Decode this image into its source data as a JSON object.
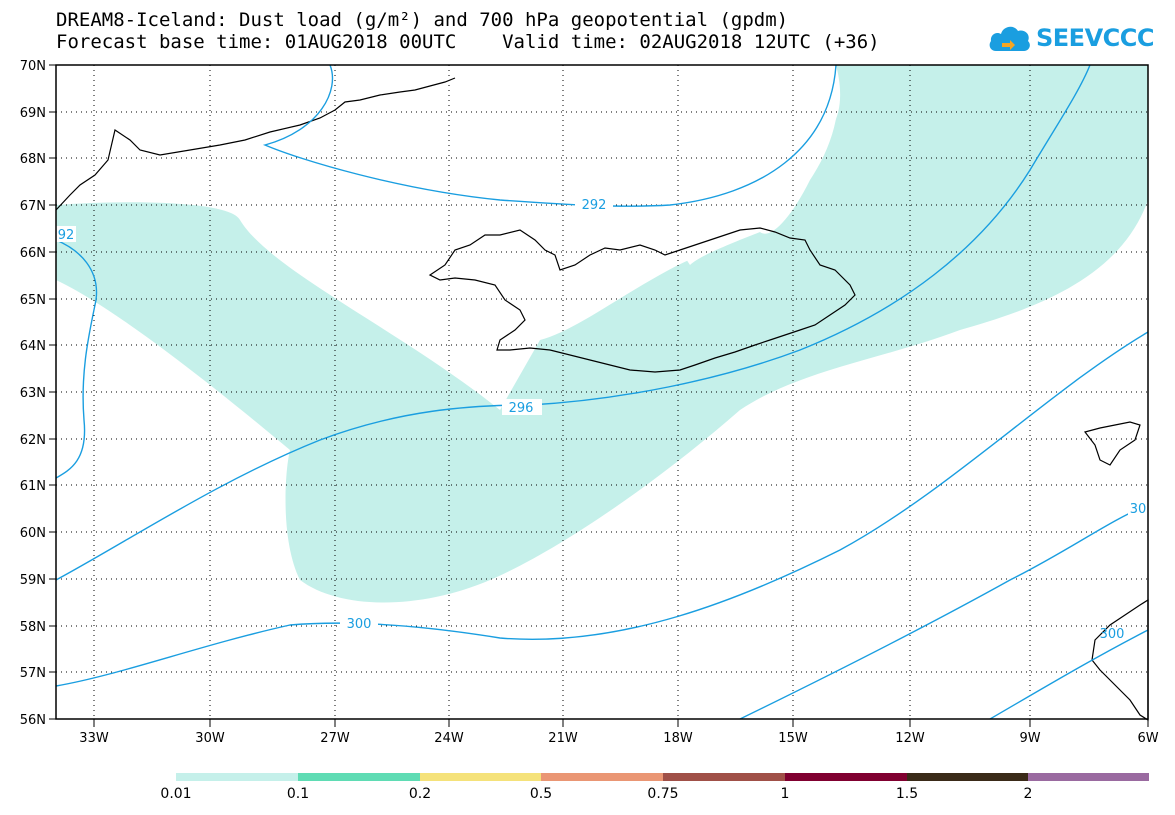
{
  "title_line1": "DREAM8-Iceland: Dust load (g/m²) and 700 hPa geopotential (gpdm)",
  "title_line2": "Forecast base time: 01AUG2018 00UTC    Valid time: 02AUG2018 12UTC (+36)",
  "logo": {
    "text": "SEEVCCC",
    "icon": "cloud-logo-icon",
    "color": "#1a9ee0"
  },
  "map": {
    "lat_labels": [
      "70N",
      "69N",
      "68N",
      "67N",
      "66N",
      "65N",
      "64N",
      "63N",
      "62N",
      "61N",
      "60N",
      "59N",
      "58N",
      "57N",
      "56N"
    ],
    "lon_labels": [
      "33W",
      "30W",
      "27W",
      "24W",
      "21W",
      "18W",
      "15W",
      "12W",
      "9W",
      "6W"
    ],
    "contour_labels": [
      "292",
      "92",
      "296",
      "300",
      "30",
      "300"
    ],
    "contour_color": "#1a9ee0",
    "dust_color": "#c5f0ea"
  },
  "colorbar": {
    "colors": [
      "#c5f0ea",
      "#5fdcb4",
      "#f5e27a",
      "#ea9674",
      "#a05048",
      "#800030",
      "#3a2a18",
      "#9a6aa0"
    ],
    "labels": [
      "0.01",
      "0.1",
      "0.2",
      "0.5",
      "0.75",
      "1",
      "1.5",
      "2"
    ]
  }
}
